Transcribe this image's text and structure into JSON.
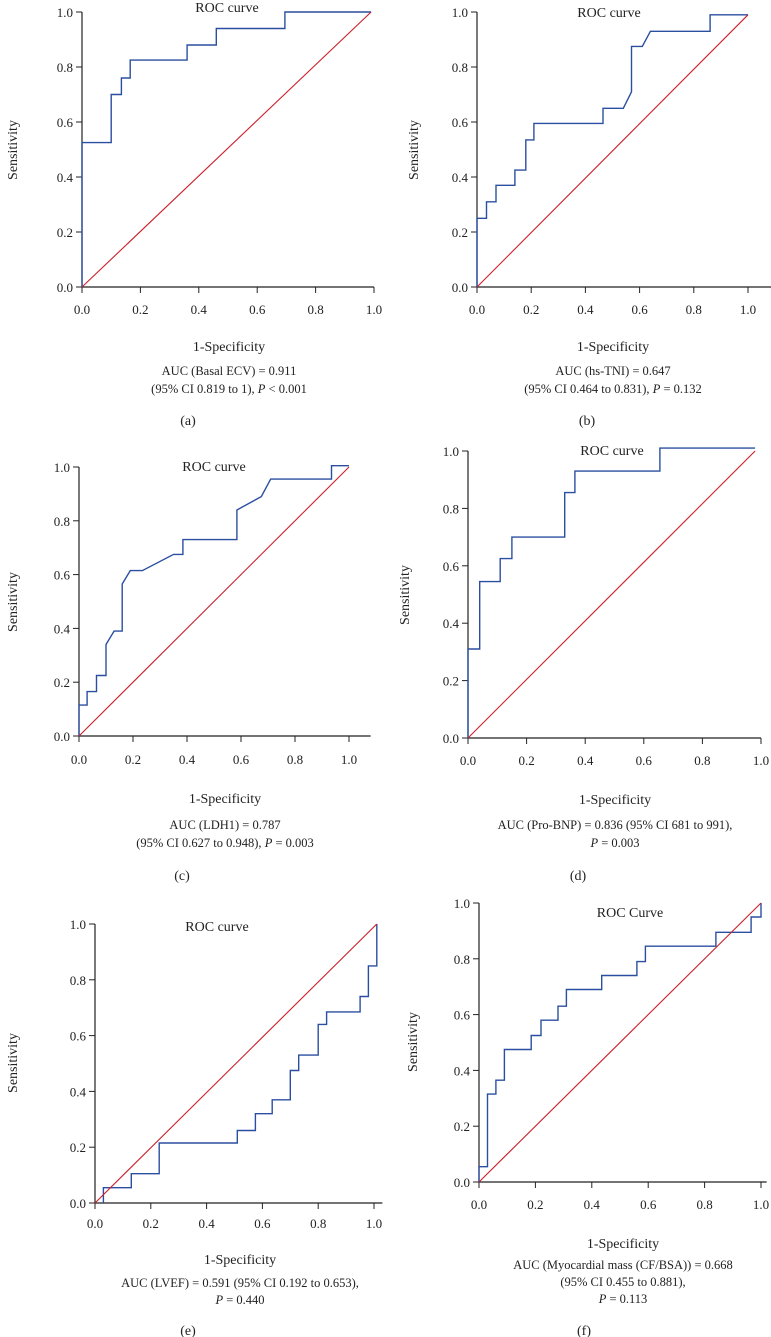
{
  "colors": {
    "roc": "#2b4fa0",
    "reference": "#cc1f2a",
    "axis": "#222222"
  },
  "chart_data": [
    {
      "type": "line",
      "panel": "(a)",
      "title": "ROC curve",
      "xlabel": "1-Specificity",
      "ylabel": "Sensitivity",
      "xlim": [
        0,
        1
      ],
      "ylim": [
        0,
        1
      ],
      "xticks": [
        "0.0",
        "0.2",
        "0.4",
        "0.6",
        "0.8",
        "1.0"
      ],
      "yticks": [
        "0.0",
        "0.2",
        "0.4",
        "0.6",
        "0.8",
        "1.0"
      ],
      "caption": [
        "AUC (Basal ECV) = 0.911",
        "(95% CI 0.819 to 1), P < 0.001"
      ],
      "series": [
        {
          "name": "ROC",
          "points": [
            [
              0,
              0
            ],
            [
              0,
              0.525
            ],
            [
              0.1,
              0.525
            ],
            [
              0.1,
              0.7
            ],
            [
              0.135,
              0.7
            ],
            [
              0.135,
              0.76
            ],
            [
              0.165,
              0.76
            ],
            [
              0.165,
              0.825
            ],
            [
              0.36,
              0.825
            ],
            [
              0.36,
              0.88
            ],
            [
              0.46,
              0.88
            ],
            [
              0.46,
              0.94
            ],
            [
              0.695,
              0.94
            ],
            [
              0.695,
              1
            ],
            [
              0.99,
              1
            ]
          ]
        },
        {
          "name": "Reference",
          "points": [
            [
              0,
              0
            ],
            [
              0.99,
              1
            ]
          ]
        }
      ]
    },
    {
      "type": "line",
      "panel": "(b)",
      "title": "ROC curve",
      "xlabel": "1-Specificity",
      "ylabel": "Sensitivity",
      "xlim": [
        0,
        1.1
      ],
      "ylim": [
        0,
        1
      ],
      "xticks": [
        "0.0",
        "0.2",
        "0.4",
        "0.6",
        "0.8",
        "1.0"
      ],
      "yticks": [
        "0.0",
        "0.2",
        "0.4",
        "0.6",
        "0.8",
        "1.0"
      ],
      "caption": [
        "AUC (hs-TNI) = 0.647",
        "(95% CI 0.464 to 0.831), P = 0.132"
      ],
      "series": [
        {
          "name": "ROC",
          "points": [
            [
              0,
              0
            ],
            [
              0,
              0.25
            ],
            [
              0.035,
              0.25
            ],
            [
              0.035,
              0.31
            ],
            [
              0.07,
              0.31
            ],
            [
              0.07,
              0.37
            ],
            [
              0.14,
              0.37
            ],
            [
              0.14,
              0.425
            ],
            [
              0.18,
              0.425
            ],
            [
              0.18,
              0.535
            ],
            [
              0.21,
              0.535
            ],
            [
              0.21,
              0.595
            ],
            [
              0.465,
              0.595
            ],
            [
              0.465,
              0.65
            ],
            [
              0.54,
              0.65
            ],
            [
              0.57,
              0.71
            ],
            [
              0.57,
              0.875
            ],
            [
              0.61,
              0.875
            ],
            [
              0.64,
              0.93
            ],
            [
              0.86,
              0.93
            ],
            [
              0.86,
              0.99
            ],
            [
              1,
              0.99
            ]
          ]
        },
        {
          "name": "Reference",
          "points": [
            [
              0,
              0
            ],
            [
              1,
              0.99
            ]
          ]
        }
      ]
    },
    {
      "type": "line",
      "panel": "(c)",
      "title": "ROC curve",
      "xlabel": "1-Specificity",
      "ylabel": "Sensitivity",
      "xlim": [
        0,
        1.08
      ],
      "ylim": [
        0,
        1
      ],
      "xticks": [
        "0.0",
        "0.2",
        "0.4",
        "0.6",
        "0.8",
        "1.0"
      ],
      "yticks": [
        "0.0",
        "0.2",
        "0.4",
        "0.6",
        "0.8",
        "1.0"
      ],
      "caption": [
        "AUC (LDH1) = 0.787",
        "(95% CI 0.627 to 0.948), P = 0.003"
      ],
      "series": [
        {
          "name": "ROC",
          "points": [
            [
              0,
              0
            ],
            [
              0,
              0.115
            ],
            [
              0.03,
              0.115
            ],
            [
              0.03,
              0.165
            ],
            [
              0.065,
              0.165
            ],
            [
              0.065,
              0.225
            ],
            [
              0.1,
              0.225
            ],
            [
              0.1,
              0.34
            ],
            [
              0.13,
              0.39
            ],
            [
              0.16,
              0.39
            ],
            [
              0.16,
              0.565
            ],
            [
              0.19,
              0.615
            ],
            [
              0.235,
              0.615
            ],
            [
              0.35,
              0.675
            ],
            [
              0.385,
              0.675
            ],
            [
              0.385,
              0.73
            ],
            [
              0.585,
              0.73
            ],
            [
              0.585,
              0.84
            ],
            [
              0.675,
              0.89
            ],
            [
              0.71,
              0.955
            ],
            [
              0.935,
              0.955
            ],
            [
              0.935,
              1.005
            ],
            [
              1,
              1.005
            ]
          ]
        },
        {
          "name": "Reference",
          "points": [
            [
              0,
              0
            ],
            [
              1,
              1
            ]
          ]
        }
      ]
    },
    {
      "type": "line",
      "panel": "(d)",
      "title": "ROC curve",
      "xlabel": "1-Specificity",
      "ylabel": "Sensitivity",
      "xlim": [
        0,
        1
      ],
      "ylim": [
        0,
        1
      ],
      "xticks": [
        "0.0",
        "0.2",
        "0.4",
        "0.6",
        "0.8",
        "1.0"
      ],
      "yticks": [
        "0.0",
        "0.2",
        "0.4",
        "0.6",
        "0.8",
        "1.0"
      ],
      "caption": [
        "AUC (Pro-BNP) = 0.836 (95% CI 681 to 991),",
        "P = 0.003"
      ],
      "series": [
        {
          "name": "ROC",
          "points": [
            [
              0,
              0
            ],
            [
              0,
              0.31
            ],
            [
              0.04,
              0.31
            ],
            [
              0.04,
              0.545
            ],
            [
              0.11,
              0.545
            ],
            [
              0.11,
              0.625
            ],
            [
              0.15,
              0.625
            ],
            [
              0.15,
              0.7
            ],
            [
              0.33,
              0.7
            ],
            [
              0.33,
              0.855
            ],
            [
              0.365,
              0.855
            ],
            [
              0.365,
              0.93
            ],
            [
              0.655,
              0.93
            ],
            [
              0.655,
              1.01
            ],
            [
              0.98,
              1.01
            ]
          ]
        },
        {
          "name": "Reference",
          "points": [
            [
              0,
              0
            ],
            [
              0.98,
              1.0
            ]
          ]
        }
      ]
    },
    {
      "type": "line",
      "panel": "(e)",
      "title": "ROC curve",
      "xlabel": "1-Specificity",
      "ylabel": "Sensitivity",
      "xlim": [
        0,
        1.03
      ],
      "ylim": [
        0,
        1
      ],
      "xticks": [
        "0.0",
        "0.2",
        "0.4",
        "0.6",
        "0.8",
        "1.0"
      ],
      "yticks": [
        "0.0",
        "0.2",
        "0.4",
        "0.6",
        "0.8",
        "1.0"
      ],
      "caption": [
        "AUC (LVEF) = 0.591 (95% CI 0.192 to 0.653),",
        "P = 0.440"
      ],
      "series": [
        {
          "name": "ROC",
          "points": [
            [
              0.03,
              0
            ],
            [
              0.03,
              0.055
            ],
            [
              0.13,
              0.055
            ],
            [
              0.13,
              0.105
            ],
            [
              0.23,
              0.105
            ],
            [
              0.23,
              0.215
            ],
            [
              0.51,
              0.215
            ],
            [
              0.51,
              0.26
            ],
            [
              0.575,
              0.26
            ],
            [
              0.575,
              0.32
            ],
            [
              0.635,
              0.32
            ],
            [
              0.635,
              0.37
            ],
            [
              0.7,
              0.37
            ],
            [
              0.7,
              0.475
            ],
            [
              0.73,
              0.475
            ],
            [
              0.73,
              0.53
            ],
            [
              0.8,
              0.53
            ],
            [
              0.8,
              0.64
            ],
            [
              0.83,
              0.64
            ],
            [
              0.83,
              0.685
            ],
            [
              0.95,
              0.685
            ],
            [
              0.95,
              0.74
            ],
            [
              0.98,
              0.74
            ],
            [
              0.98,
              0.85
            ],
            [
              1.01,
              0.85
            ],
            [
              1.01,
              1.0
            ]
          ]
        },
        {
          "name": "Reference",
          "points": [
            [
              0,
              0
            ],
            [
              1.01,
              1.0
            ]
          ]
        }
      ]
    },
    {
      "type": "line",
      "panel": "(f)",
      "title": "ROC Curve",
      "xlabel": "1-Specificity",
      "ylabel": "Sensitivity",
      "xlim": [
        0,
        1.02
      ],
      "ylim": [
        0,
        1
      ],
      "xticks": [
        "0.0",
        "0.2",
        "0.4",
        "0.6",
        "0.8",
        "1.0"
      ],
      "yticks": [
        "0.0",
        "0.2",
        "0.4",
        "0.6",
        "0.8",
        "1.0"
      ],
      "caption": [
        "AUC (Myocardial mass (CF/BSA)) = 0.668",
        "(95% CI 0.455 to 0.881),",
        "P = 0.113"
      ],
      "series": [
        {
          "name": "ROC",
          "points": [
            [
              0,
              0
            ],
            [
              0,
              0.055
            ],
            [
              0.03,
              0.055
            ],
            [
              0.03,
              0.315
            ],
            [
              0.06,
              0.315
            ],
            [
              0.06,
              0.365
            ],
            [
              0.09,
              0.365
            ],
            [
              0.09,
              0.475
            ],
            [
              0.185,
              0.475
            ],
            [
              0.185,
              0.525
            ],
            [
              0.22,
              0.525
            ],
            [
              0.22,
              0.58
            ],
            [
              0.28,
              0.58
            ],
            [
              0.28,
              0.63
            ],
            [
              0.31,
              0.63
            ],
            [
              0.31,
              0.69
            ],
            [
              0.435,
              0.69
            ],
            [
              0.435,
              0.74
            ],
            [
              0.56,
              0.74
            ],
            [
              0.56,
              0.79
            ],
            [
              0.59,
              0.79
            ],
            [
              0.59,
              0.845
            ],
            [
              0.84,
              0.845
            ],
            [
              0.84,
              0.895
            ],
            [
              0.965,
              0.895
            ],
            [
              0.965,
              0.95
            ],
            [
              1.0,
              0.95
            ],
            [
              1.0,
              1.0
            ]
          ]
        },
        {
          "name": "Reference",
          "points": [
            [
              0,
              0
            ],
            [
              1,
              1
            ]
          ]
        }
      ]
    }
  ]
}
